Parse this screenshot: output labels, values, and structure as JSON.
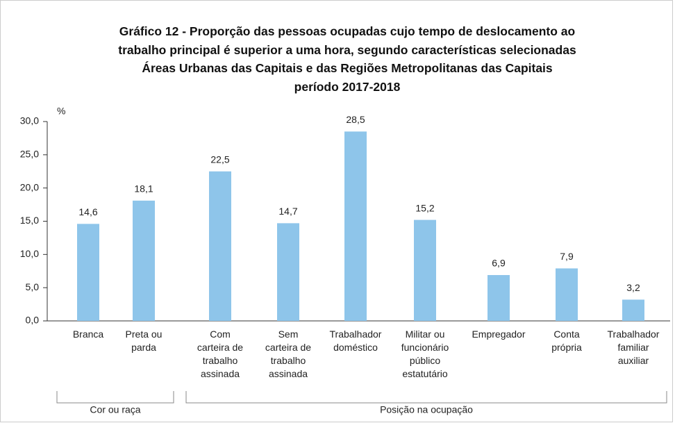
{
  "chart_data": {
    "type": "bar",
    "title": "Gráfico 12 - Proporção das pessoas ocupadas cujo tempo de deslocamento ao\ntrabalho principal é superior a uma hora, segundo características selecionadas\nÁreas Urbanas das Capitais e das Regiões Metropolitanas das Capitais\nperíodo 2017-2018",
    "y_label": "%",
    "categories": [
      "Branca",
      "Preta ou\nparda",
      "Com\ncarteira de\ntrabalho\nassinada",
      "Sem\ncarteira de\ntrabalho\nassinada",
      "Trabalhador\ndoméstico",
      "Militar ou\nfuncionário\npúblico\nestatutário",
      "Empregador",
      "Conta\nprópria",
      "Trabalhador\nfamiliar\nauxiliar"
    ],
    "values": [
      14.6,
      18.1,
      22.5,
      14.7,
      28.5,
      15.2,
      6.9,
      7.9,
      3.2
    ],
    "value_labels": [
      "14,6",
      "18,1",
      "22,5",
      "14,7",
      "28,5",
      "15,2",
      "6,9",
      "7,9",
      "3,2"
    ],
    "groups": [
      "Cor ou raça",
      "Posição na ocupação"
    ],
    "color": "#8ec5ea",
    "ylim": [
      0,
      30
    ],
    "yticks": [
      {
        "value": 0,
        "label": "0,0"
      },
      {
        "value": 5,
        "label": "5,0"
      },
      {
        "value": 10,
        "label": "10,0"
      },
      {
        "value": 15,
        "label": "15,0"
      },
      {
        "value": 20,
        "label": "20,0"
      },
      {
        "value": 25,
        "label": "25,0"
      },
      {
        "value": 30,
        "label": "30,0"
      }
    ],
    "grid": false
  }
}
